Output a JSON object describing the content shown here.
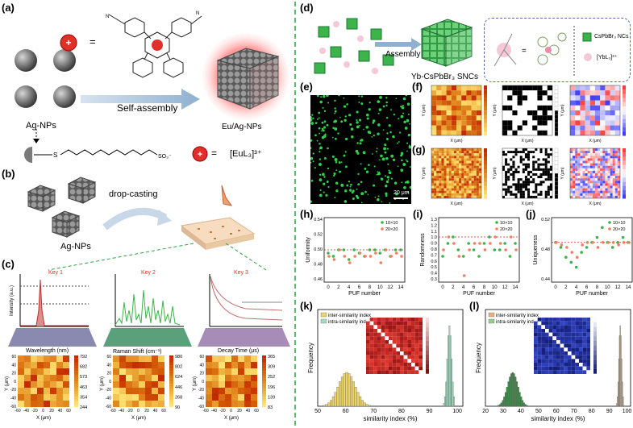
{
  "panels": {
    "a": "(a)",
    "b": "(b)",
    "c": "(c)",
    "d": "(d)",
    "e": "(e)",
    "f": "(f)",
    "g": "(g)",
    "h": "(h)",
    "i": "(i)",
    "j": "(j)",
    "k": "(k)",
    "l": "(l)"
  },
  "a": {
    "agnps": "Ag-NPs",
    "eq": "=",
    "self_assembly": "Self-assembly",
    "product": "Eu/Ag-NPs",
    "ligand_label": "[EuL₃]³⁺"
  },
  "b": {
    "drop_casting": "drop-casting",
    "agnps": "Ag-NPs"
  },
  "c": {
    "keys": [
      "Key 1",
      "Key 2",
      "Key 3"
    ],
    "xlabels": [
      "Wavelength (nm)",
      "Raman Shift (cm⁻¹)",
      "Decay Time (μs)"
    ],
    "ylabels": [
      "Intensity (a.u.)",
      "Intensity (a.u.)",
      "Log Intensity (a.u.)"
    ],
    "map_xlabel": "X (μm)",
    "map_ylabel": "Y (μm)",
    "colorbars": [
      [
        "792",
        "682",
        "573",
        "463",
        "354",
        "244"
      ],
      [
        "980",
        "802",
        "624",
        "446",
        "268",
        "90"
      ],
      [
        "365",
        "309",
        "252",
        "196",
        "139",
        "83"
      ]
    ]
  },
  "d": {
    "assembly": "Assembly",
    "product": "Yb-CsPbBr₃ SNCs",
    "legend_nc": "CsPbBr₃ NCs",
    "legend_yb": "[YbL₃]³⁺",
    "eq": "="
  },
  "e": {
    "scale": "20 μm"
  },
  "fg": {
    "xlabel": "X (μm)",
    "ylabel": "Y (μm)"
  },
  "h": {
    "ylabel": "Uniformity",
    "xlabel": "PUF number",
    "yticks": [
      "0.54",
      "0.52",
      "0.50",
      "0.48",
      "0.46"
    ],
    "xticks": [
      "0",
      "2",
      "4",
      "6",
      "8",
      "10",
      "12",
      "14"
    ],
    "legend": [
      "10×10",
      "20×20"
    ]
  },
  "i": {
    "ylabel": "Randomness",
    "xlabel": "PUF number",
    "yticks": [
      "1.3",
      "1.2",
      "1.1",
      "1.0",
      "0.9",
      "0.8",
      "0.7",
      "0.6",
      "0.5",
      "0.4",
      "0.3"
    ],
    "xticks": [
      "0",
      "2",
      "4",
      "6",
      "8",
      "10",
      "12",
      "14"
    ],
    "legend": [
      "10×10",
      "20×20"
    ]
  },
  "j": {
    "ylabel": "Uniqueness",
    "xlabel": "PUF number",
    "yticks": [
      "0.52",
      "0.48",
      "0.44"
    ],
    "xticks": [
      "0",
      "2",
      "4",
      "6",
      "8",
      "10",
      "12",
      "14"
    ],
    "legend": [
      "10×10",
      "20×20"
    ]
  },
  "k": {
    "ylabel": "Frequency",
    "xlabel": "similarity index (%)",
    "xticks": [
      "50",
      "60",
      "70",
      "80",
      "90",
      "100"
    ],
    "legend": [
      "inter-similarity index",
      "intra-similarity index"
    ]
  },
  "l": {
    "ylabel": "Frequency",
    "xlabel": "similarity index (%)",
    "xticks": [
      "20",
      "30",
      "40",
      "50",
      "60",
      "70",
      "80",
      "90",
      "100"
    ],
    "legend": [
      "inter-similarity index",
      "intra-similarity index"
    ]
  },
  "colors": {
    "divider": "#2ea043",
    "agnp": "#7a7a7a",
    "red": "#e0302a",
    "green": "#2fb24a",
    "orange_pt": "#f08060",
    "green_pt": "#3cb44b",
    "inter_hist": "#e9d36a",
    "intra_hist": "#9fdcc0",
    "intra_hist_l": "#c9b89a"
  }
}
